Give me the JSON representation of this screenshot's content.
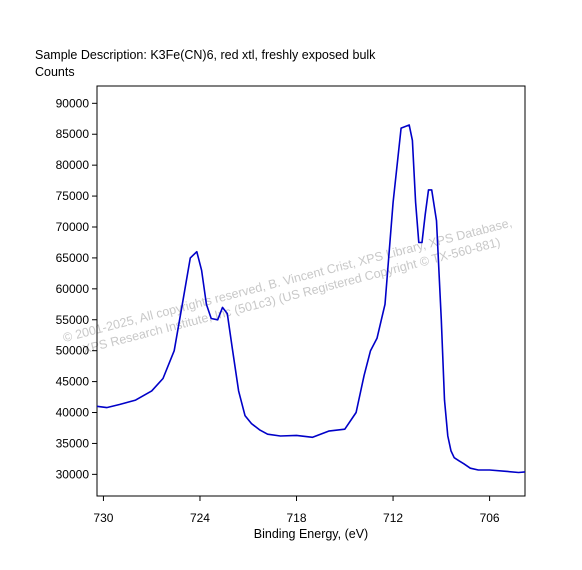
{
  "chart_data": {
    "type": "line",
    "title": "Sample Description:  K3Fe(CN)6, red xtl, freshly exposed bulk",
    "ylabel": "Counts",
    "xlabel": "Binding Energy, (eV)",
    "x_reversed": true,
    "xlim": [
      730.4,
      703.8
    ],
    "ylim": [
      26500,
      92800
    ],
    "x_ticks": [
      730,
      724,
      718,
      712,
      706
    ],
    "x_tick_labels": [
      "730",
      "724",
      "718",
      "712",
      "706"
    ],
    "y_ticks": [
      30000,
      35000,
      40000,
      45000,
      50000,
      55000,
      60000,
      65000,
      70000,
      75000,
      80000,
      85000,
      90000
    ],
    "y_tick_labels": [
      "30000",
      "35000",
      "40000",
      "45000",
      "50000",
      "55000",
      "60000",
      "65000",
      "70000",
      "75000",
      "80000",
      "85000",
      "90000"
    ],
    "grid": false,
    "legend": "none",
    "line_color": "#0000c8",
    "series": [
      {
        "x": [
          730.4,
          729.8,
          729.0,
          728.0,
          727.0,
          726.3,
          725.6,
          725.1,
          724.6,
          724.2,
          723.9,
          723.6,
          723.3,
          722.9,
          722.6,
          722.3,
          722.0,
          721.6,
          721.2,
          720.8,
          720.3,
          719.8,
          719.0,
          718.0,
          717.0,
          716.0,
          715.0,
          714.3,
          713.8,
          713.4,
          713.0,
          712.5,
          712.0,
          711.5,
          711.0,
          710.8,
          710.6,
          710.4,
          710.2,
          710.0,
          709.8,
          709.6,
          709.3,
          709.0,
          708.8,
          708.6,
          708.4,
          708.2,
          707.9,
          707.6,
          707.2,
          706.7,
          706.0,
          705.0,
          704.2,
          703.8
        ],
        "y": [
          41000,
          40800,
          41300,
          42000,
          43500,
          45500,
          50000,
          57500,
          65000,
          66000,
          63000,
          57500,
          55200,
          55000,
          57000,
          56000,
          50500,
          43500,
          39500,
          38200,
          37200,
          36500,
          36200,
          36300,
          36000,
          37000,
          37300,
          40000,
          46000,
          50000,
          52000,
          57500,
          74000,
          86000,
          86500,
          84000,
          74000,
          67500,
          67500,
          72000,
          76000,
          76000,
          71000,
          55000,
          42000,
          36200,
          33800,
          32700,
          32200,
          31700,
          31000,
          30700,
          30700,
          30500,
          30300,
          30400
        ]
      }
    ],
    "watermark": {
      "line1": "© 2001-2025,  All copyrights reserved,   B. Vincent Crist,  XPS Library,  XPS Database,",
      "line2": "XPS Research Institute, Inc (501c3)   (US Registered Copyright © TX-560-881)"
    }
  }
}
